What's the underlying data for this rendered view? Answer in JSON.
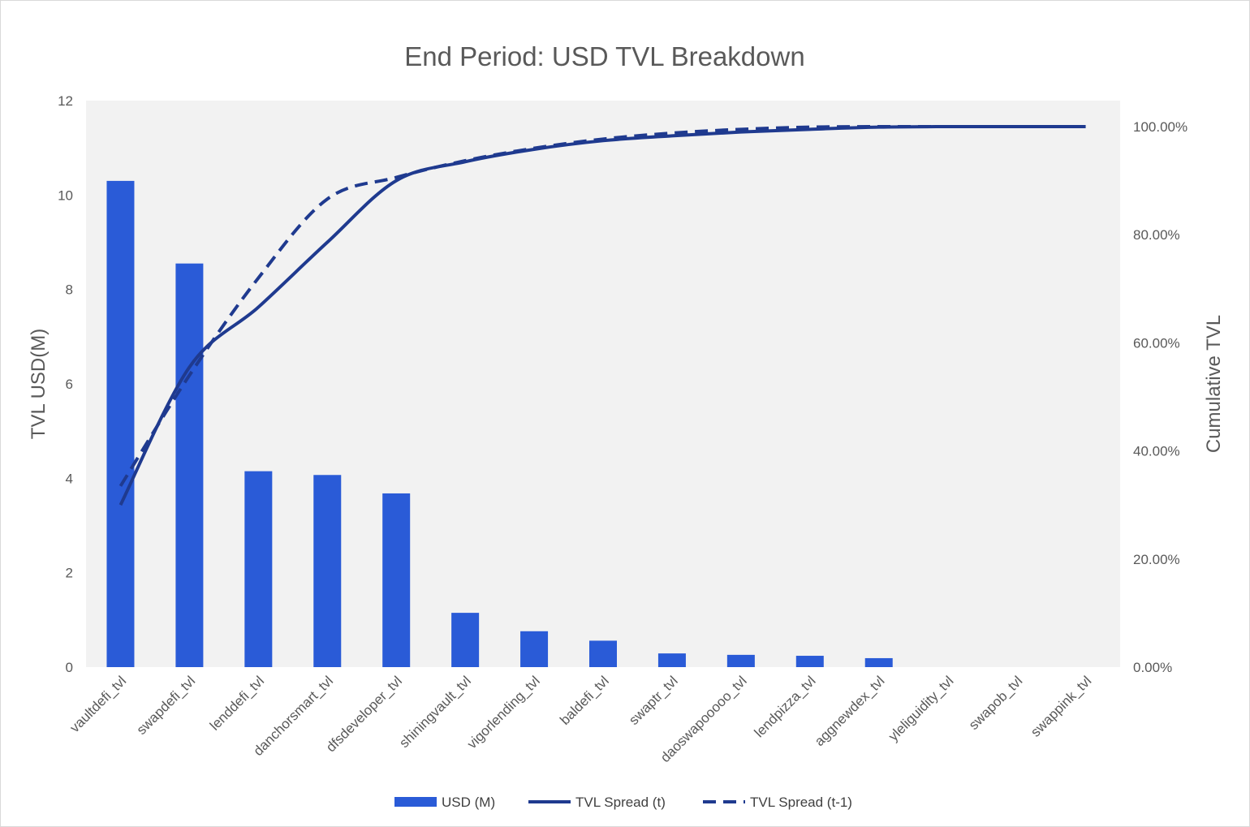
{
  "chart_data": {
    "type": "bar",
    "title": "End Period: USD  TVL Breakdown",
    "ylabel": "TVL USD(M)",
    "y2label": "Cumulative TVL",
    "ylim": [
      0,
      12
    ],
    "y_ticks": [
      "0",
      "2",
      "4",
      "6",
      "8",
      "10",
      "12"
    ],
    "y2lim": [
      0,
      1
    ],
    "y2_ticks": [
      "0.00%",
      "20.00%",
      "40.00%",
      "60.00%",
      "80.00%",
      "100.00%"
    ],
    "categories": [
      "vaultdefi_tvl",
      "swapdefi_tvl",
      "lenddefi_tvl",
      "danchorsmart_tvl",
      "dfsdeveloper_tvl",
      "shiningvault_tvl",
      "vigorlending_tvl",
      "baldefi_tvl",
      "swaptr_tvl",
      "daoswapooooo_tvl",
      "lendpizza_tvl",
      "aggnewdex_tvl",
      "yleliguidity_tvl",
      "swapob_tvl",
      "swappink_tvl"
    ],
    "series": [
      {
        "name": "USD (M)",
        "kind": "bar",
        "axis": "left",
        "color": "#2a5bd7",
        "values": [
          10.3,
          8.55,
          4.15,
          4.07,
          3.68,
          1.15,
          0.76,
          0.56,
          0.29,
          0.26,
          0.24,
          0.19,
          0.0,
          0.0,
          0.0
        ]
      },
      {
        "name": "TVL Spread (t)",
        "kind": "line",
        "style": "solid",
        "axis": "right",
        "color": "#1f3a8f",
        "values": [
          0.3,
          0.555,
          0.666,
          0.786,
          0.9,
          0.935,
          0.958,
          0.974,
          0.983,
          0.99,
          0.995,
          0.999,
          1.0,
          1.0,
          1.0
        ]
      },
      {
        "name": "TVL Spread (t-1)",
        "kind": "line",
        "style": "dashed",
        "axis": "right",
        "color": "#1f3a8f",
        "values": [
          0.335,
          0.54,
          0.72,
          0.866,
          0.906,
          0.937,
          0.96,
          0.977,
          0.988,
          0.995,
          0.999,
          1.0,
          1.0,
          1.0,
          1.0
        ]
      }
    ],
    "legend_position": "bottom",
    "grid": false
  }
}
